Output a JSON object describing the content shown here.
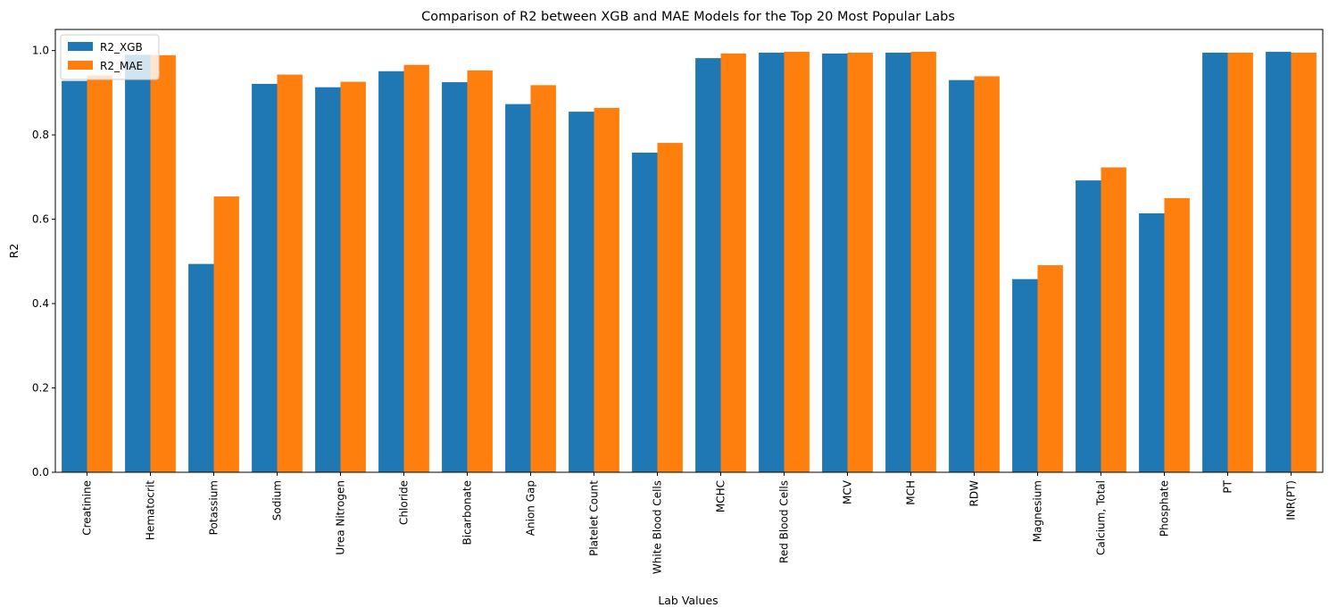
{
  "chart_data": {
    "type": "bar",
    "title": "Comparison of R2 between XGB and MAE Models for the Top 20 Most Popular Labs",
    "xlabel": "Lab Values",
    "ylabel": "R2",
    "ylim": [
      0,
      1.05
    ],
    "yticks": [
      0.0,
      0.2,
      0.4,
      0.6,
      0.8,
      1.0
    ],
    "ytick_labels": [
      "0.0",
      "0.2",
      "0.4",
      "0.6",
      "0.8",
      "1.0"
    ],
    "grid": false,
    "legend_position": "top-left",
    "categories": [
      "Creatinine",
      "Hematocrit",
      "Potassium",
      "Sodium",
      "Urea Nitrogen",
      "Chloride",
      "Bicarbonate",
      "Anion Gap",
      "Platelet Count",
      "White Blood Cells",
      "MCHC",
      "Red Blood Cells",
      "MCV",
      "MCH",
      "RDW",
      "Magnesium",
      "Calcium, Total",
      "Phosphate",
      "PT",
      "INR(PT)"
    ],
    "series": [
      {
        "name": "R2_XGB",
        "color": "#1f77b4",
        "values": [
          0.928,
          0.99,
          0.494,
          0.921,
          0.913,
          0.951,
          0.925,
          0.873,
          0.855,
          0.758,
          0.982,
          0.995,
          0.993,
          0.995,
          0.93,
          0.458,
          0.692,
          0.614,
          0.995,
          0.997
        ]
      },
      {
        "name": "R2_MAE",
        "color": "#ff7f0e",
        "values": [
          0.941,
          0.989,
          0.654,
          0.943,
          0.926,
          0.966,
          0.953,
          0.918,
          0.864,
          0.781,
          0.993,
          0.997,
          0.995,
          0.997,
          0.939,
          0.491,
          0.723,
          0.65,
          0.995,
          0.995
        ]
      }
    ]
  }
}
